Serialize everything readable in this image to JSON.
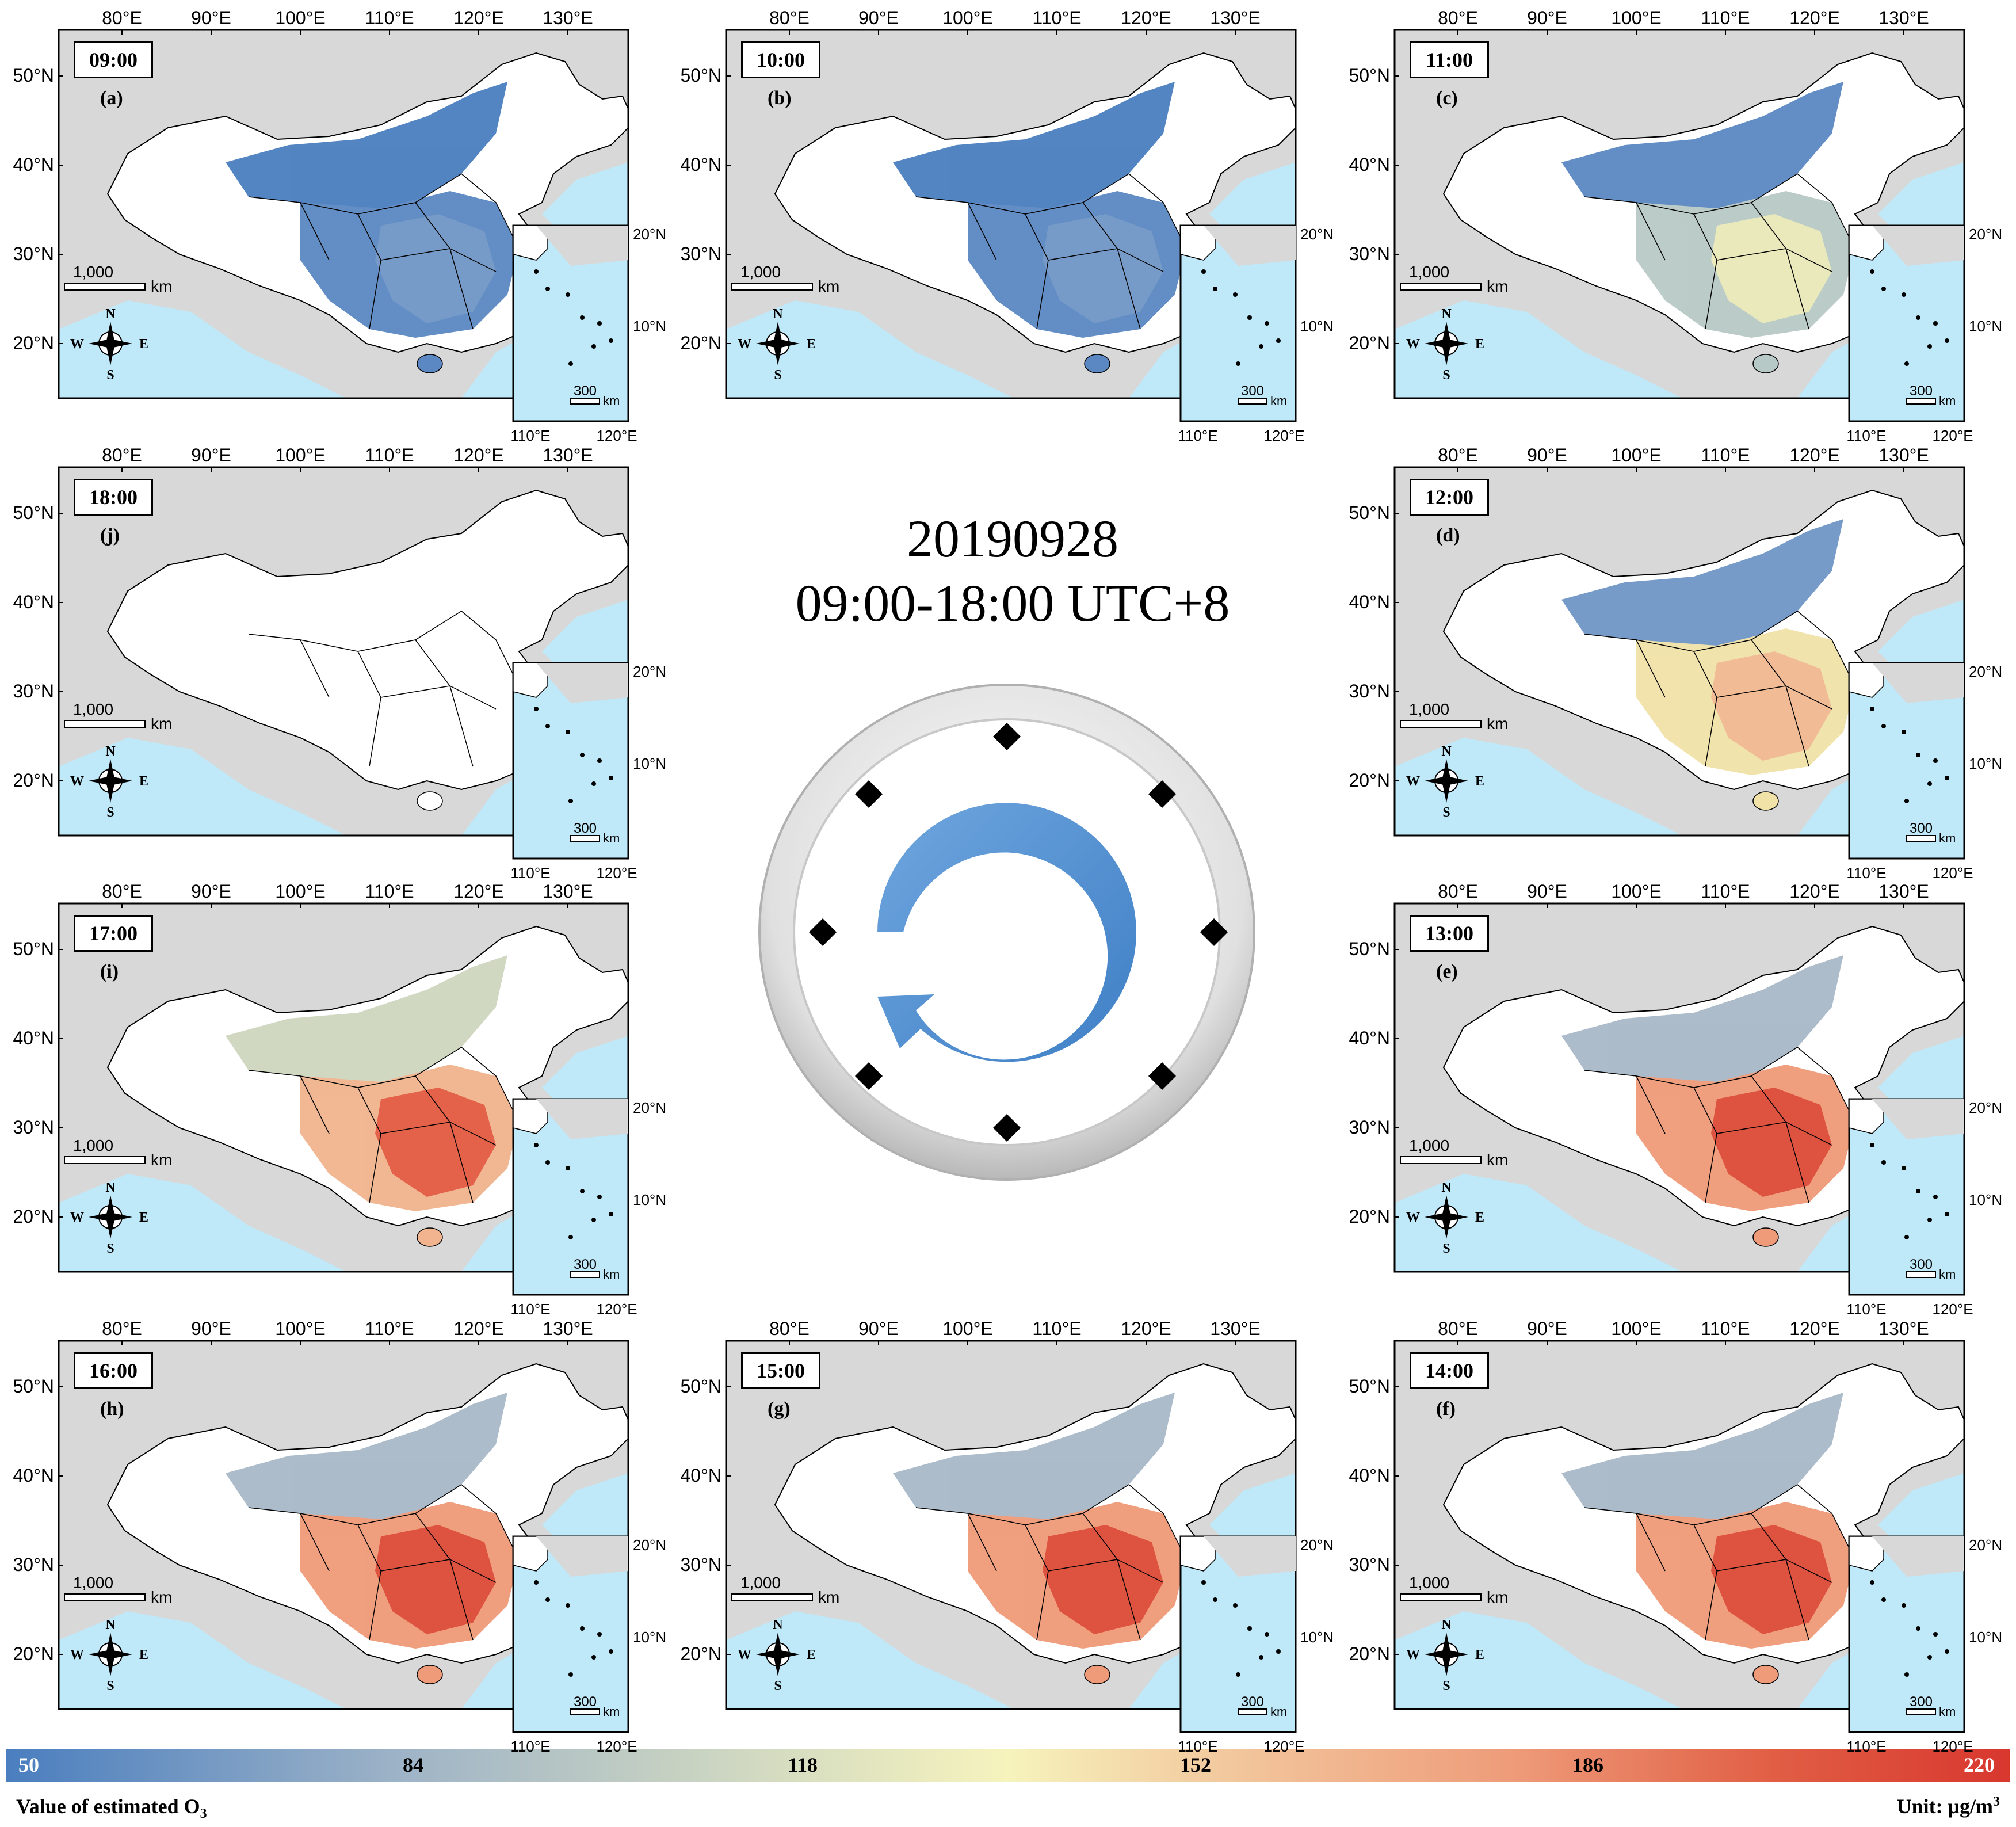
{
  "title": {
    "line1": "20190928",
    "line2": "09:00-18:00 UTC+8"
  },
  "axes": {
    "lon_ticks": [
      "80°E",
      "90°E",
      "100°E",
      "110°E",
      "120°E",
      "130°E"
    ],
    "lat_ticks": [
      "50°N",
      "40°N",
      "30°N",
      "20°N"
    ],
    "inset_lon_ticks": [
      "110°E",
      "120°E"
    ],
    "inset_lat_ticks": [
      "20°N",
      "10°N"
    ]
  },
  "scalebar": {
    "main_value": "1,000",
    "main_unit": "km",
    "inset_value": "300",
    "inset_unit": "km"
  },
  "compass": {
    "n": "N",
    "s": "S",
    "e": "E",
    "w": "W"
  },
  "colors": {
    "ocean": "#bfe8f8",
    "neighbor_land": "#d8d8d8",
    "no_data": "#ffffff",
    "low": "#4a7ebf",
    "mid": "#f6f3bd",
    "high": "#d8372e"
  },
  "panels": [
    {
      "time": "09:00",
      "letter": "(a)",
      "level": "low"
    },
    {
      "time": "10:00",
      "letter": "(b)",
      "level": "low"
    },
    {
      "time": "11:00",
      "letter": "(c)",
      "level": "low-mid"
    },
    {
      "time": "12:00",
      "letter": "(d)",
      "level": "mid"
    },
    {
      "time": "13:00",
      "letter": "(e)",
      "level": "high"
    },
    {
      "time": "14:00",
      "letter": "(f)",
      "level": "high"
    },
    {
      "time": "15:00",
      "letter": "(g)",
      "level": "high"
    },
    {
      "time": "16:00",
      "letter": "(h)",
      "level": "high"
    },
    {
      "time": "17:00",
      "letter": "(i)",
      "level": "mid-high"
    },
    {
      "time": "18:00",
      "letter": "(j)",
      "level": "no-data"
    }
  ],
  "colorbar": {
    "ticks": [
      "50",
      "84",
      "118",
      "152",
      "186",
      "220"
    ],
    "label": "Value of estimated O",
    "label_sub": "3",
    "unit_label": "Unit: μg/m",
    "unit_sup": "3"
  }
}
